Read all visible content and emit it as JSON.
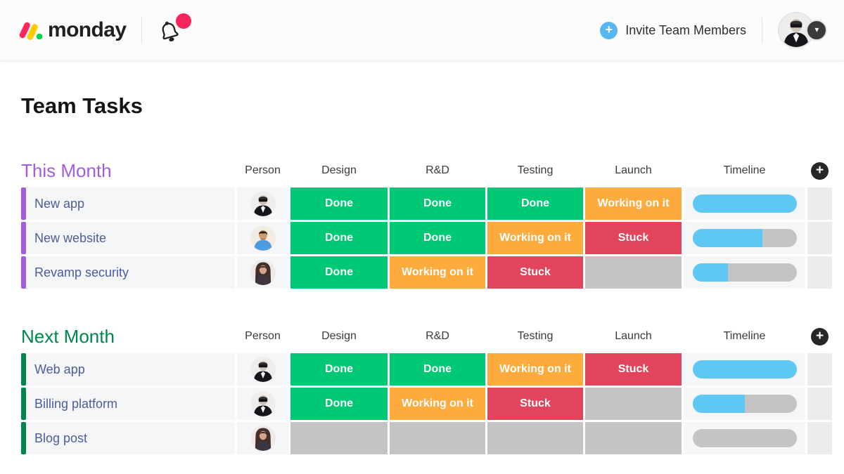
{
  "header": {
    "logo_text": "monday",
    "invite_label": "Invite Team Members",
    "has_unread_notification": true
  },
  "page_title": "Team Tasks",
  "columns": [
    "Person",
    "Design",
    "R&D",
    "Testing",
    "Launch",
    "Timeline"
  ],
  "status_colors": {
    "Done": "#00c875",
    "Working on it": "#fdab3d",
    "Stuck": "#e2445c",
    "": "#c4c4c4"
  },
  "colors": {
    "timeline_fill": "#5fc7f3",
    "timeline_track": "#c4c4c4",
    "invite_plus_blue": "#56b7f3",
    "notification_dot": "#f8245c"
  },
  "groups": [
    {
      "title": "This Month",
      "color": "#a25ddc",
      "rows": [
        {
          "task": "New app",
          "person": "man-suit",
          "statuses": [
            "Done",
            "Done",
            "Done",
            "Working on it"
          ],
          "timeline_pct": 100
        },
        {
          "task": "New website",
          "person": "man-blue",
          "statuses": [
            "Done",
            "Done",
            "Working on it",
            "Stuck"
          ],
          "timeline_pct": 67
        },
        {
          "task": "Revamp security",
          "person": "woman-brunette",
          "statuses": [
            "Done",
            "Working on it",
            "Stuck",
            ""
          ],
          "timeline_pct": 34
        }
      ]
    },
    {
      "title": "Next Month",
      "color": "#00854d",
      "rows": [
        {
          "task": "Web app",
          "person": "man-suit",
          "statuses": [
            "Done",
            "Done",
            "Working on it",
            "Stuck"
          ],
          "timeline_pct": 100
        },
        {
          "task": "Billing platform",
          "person": "man-suit",
          "statuses": [
            "Done",
            "Working on it",
            "Stuck",
            ""
          ],
          "timeline_pct": 50
        },
        {
          "task": "Blog post",
          "person": "woman-brunette",
          "statuses": [
            "",
            "",
            "",
            ""
          ],
          "timeline_pct": 0
        }
      ]
    }
  ]
}
